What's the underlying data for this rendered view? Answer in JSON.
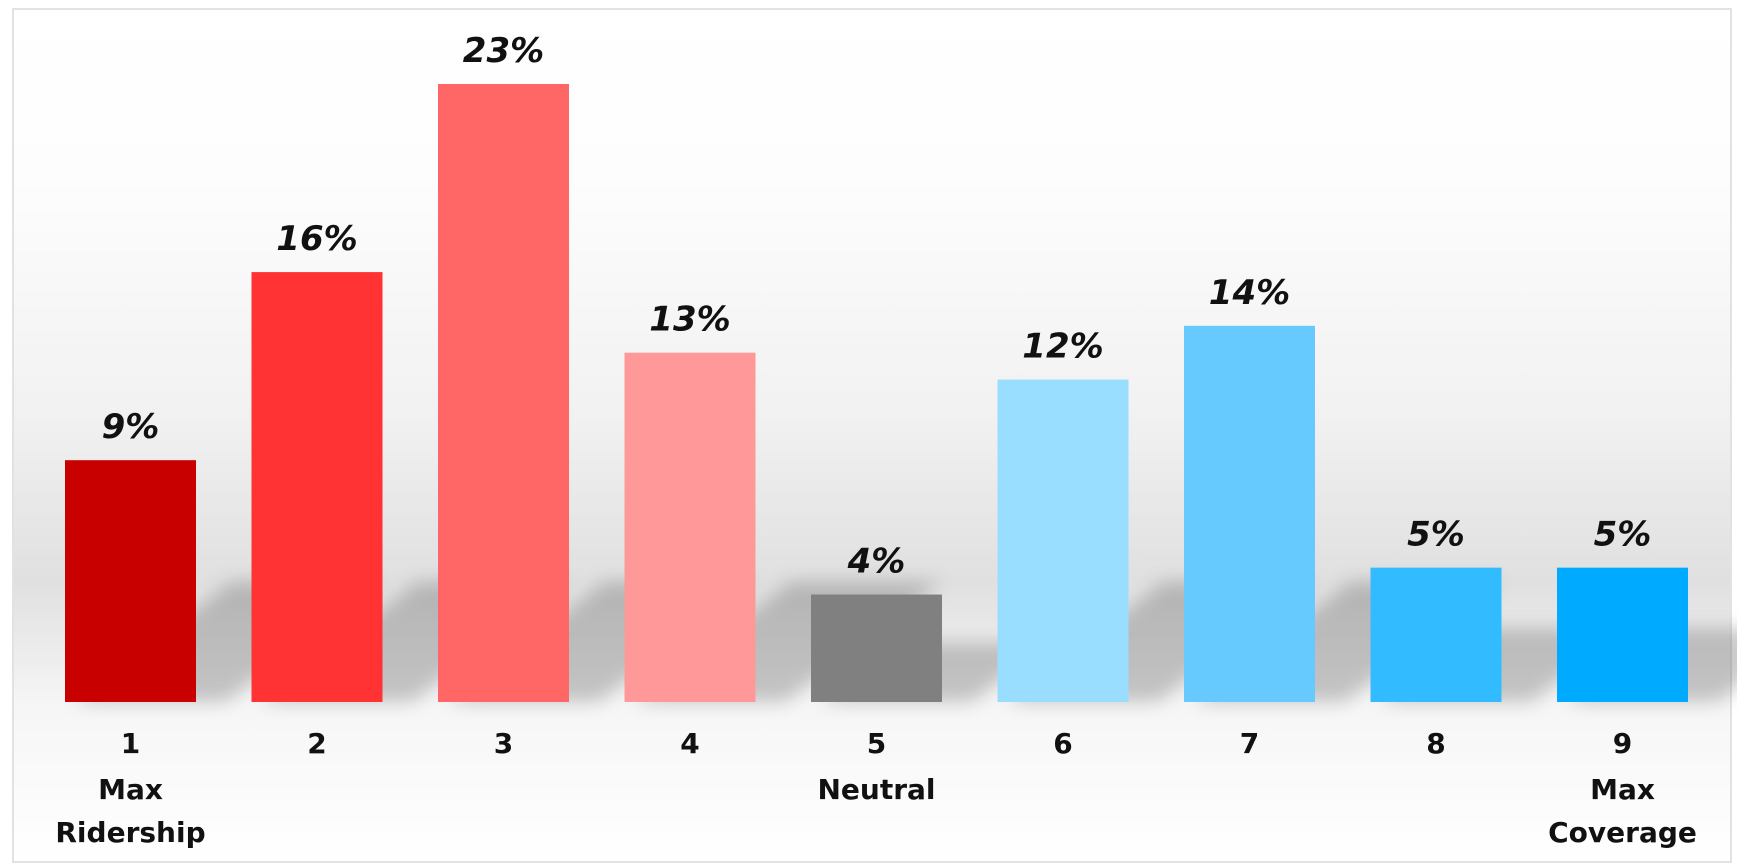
{
  "chart_data": {
    "type": "bar",
    "categories": [
      "1",
      "2",
      "3",
      "4",
      "5",
      "6",
      "7",
      "8",
      "9"
    ],
    "category_sublabels": [
      [
        "Max",
        "Ridership"
      ],
      [],
      [],
      [],
      [
        "Neutral"
      ],
      [],
      [],
      [],
      [
        "Max",
        "Coverage"
      ]
    ],
    "values": [
      9,
      16,
      23,
      13,
      4,
      12,
      14,
      5,
      5
    ],
    "value_labels": [
      "9%",
      "16%",
      "23%",
      "13%",
      "4%",
      "12%",
      "14%",
      "5%",
      "5%"
    ],
    "colors": [
      "#c90000",
      "#ff3333",
      "#ff6666",
      "#ff9999",
      "#808080",
      "#99ddff",
      "#66caff",
      "#33bbff",
      "#00aaff"
    ],
    "title": "",
    "xlabel": "",
    "ylabel": "",
    "grid": false,
    "legend": "none"
  }
}
